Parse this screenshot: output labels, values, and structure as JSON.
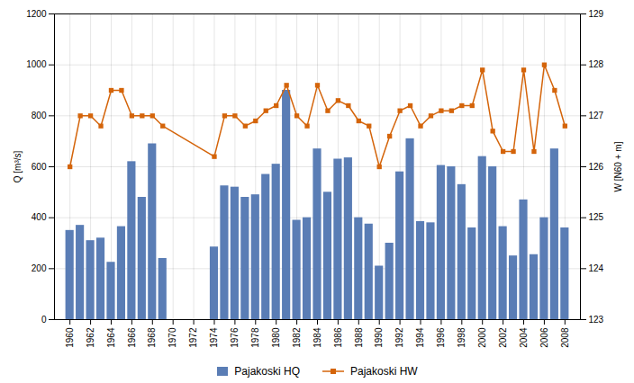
{
  "chart_data": {
    "type": "bar",
    "x": [
      1960,
      1961,
      1962,
      1963,
      1964,
      1965,
      1966,
      1967,
      1968,
      1969,
      1974,
      1975,
      1976,
      1977,
      1978,
      1979,
      1980,
      1981,
      1982,
      1983,
      1984,
      1985,
      1986,
      1987,
      1988,
      1989,
      1990,
      1991,
      1992,
      1993,
      1994,
      1995,
      1996,
      1997,
      1998,
      1999,
      2000,
      2001,
      2002,
      2003,
      2004,
      2005,
      2006,
      2007,
      2008
    ],
    "xlim": [
      1958.5,
      2009.5
    ],
    "xticks": [
      1960,
      1962,
      1964,
      1966,
      1968,
      1970,
      1972,
      1974,
      1976,
      1978,
      1980,
      1982,
      1984,
      1986,
      1988,
      1990,
      1992,
      1994,
      1996,
      1998,
      2000,
      2002,
      2004,
      2006,
      2008
    ],
    "ylabel": "Q [m³/s]",
    "y2label": "W [N60 + m]",
    "ylim": [
      0,
      1200
    ],
    "yticks": [
      0,
      200,
      400,
      600,
      800,
      1000,
      1200
    ],
    "y2lim": [
      123,
      129
    ],
    "y2ticks": [
      123,
      124,
      125,
      126,
      127,
      128,
      129
    ],
    "grid": true,
    "legend": "bottom",
    "series": [
      {
        "name": "Pajakoski HQ",
        "type": "bar",
        "color": "#5a7db5",
        "values": [
          350,
          370,
          310,
          320,
          225,
          365,
          620,
          480,
          690,
          240,
          285,
          525,
          520,
          480,
          490,
          570,
          610,
          900,
          390,
          400,
          670,
          500,
          630,
          635,
          400,
          375,
          210,
          300,
          580,
          710,
          385,
          380,
          605,
          600,
          530,
          360,
          640,
          600,
          365,
          250,
          470,
          255,
          400,
          670,
          360
        ]
      },
      {
        "name": "Pajakoski HW",
        "type": "line",
        "axis": "y2",
        "color": "#d4640a",
        "marker": "square",
        "values": [
          126.0,
          127.0,
          127.0,
          126.8,
          127.5,
          127.5,
          127.0,
          127.0,
          127.0,
          126.8,
          126.2,
          127.0,
          127.0,
          126.8,
          126.9,
          127.1,
          127.2,
          127.6,
          127.0,
          126.8,
          127.6,
          127.1,
          127.3,
          127.2,
          126.9,
          126.8,
          126.0,
          126.6,
          127.1,
          127.2,
          126.8,
          127.0,
          127.1,
          127.1,
          127.2,
          127.2,
          127.9,
          126.7,
          126.3,
          126.3,
          127.9,
          126.3,
          128.0,
          127.5,
          126.8
        ]
      }
    ]
  }
}
